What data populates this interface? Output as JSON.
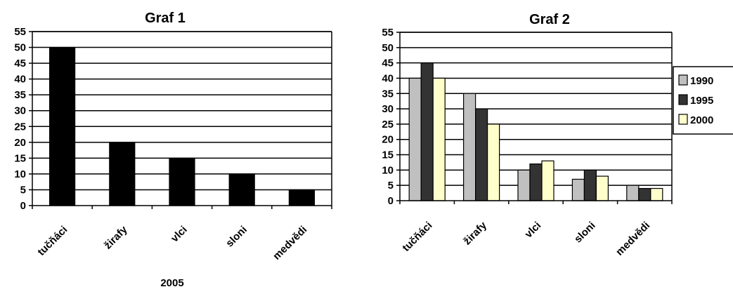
{
  "chart_data": [
    {
      "type": "bar",
      "title": "Graf 1",
      "xlabel": "2005",
      "ylabel": "",
      "ylim": [
        0,
        55
      ],
      "yticks": [
        0,
        5,
        10,
        15,
        20,
        25,
        30,
        35,
        40,
        45,
        50,
        55
      ],
      "grid": true,
      "categories": [
        "tučňáci",
        "žirafy",
        "vlci",
        "sloni",
        "medvědi"
      ],
      "series": [
        {
          "values": [
            50,
            20,
            15,
            10,
            5
          ],
          "color": "#000000"
        }
      ]
    },
    {
      "type": "bar",
      "title": "Graf 2",
      "xlabel": "",
      "ylabel": "",
      "ylim": [
        0,
        55
      ],
      "yticks": [
        0,
        5,
        10,
        15,
        20,
        25,
        30,
        35,
        40,
        45,
        50,
        55
      ],
      "grid": true,
      "legend": "right",
      "categories": [
        "tučňáci",
        "žirafy",
        "vlci",
        "sloni",
        "medvědi"
      ],
      "series": [
        {
          "name": "1990",
          "values": [
            40,
            35,
            10,
            7,
            5
          ],
          "color": "#c0c0c0"
        },
        {
          "name": "1995",
          "values": [
            45,
            30,
            12,
            10,
            4
          ],
          "color": "#333333"
        },
        {
          "name": "2000",
          "values": [
            40,
            25,
            13,
            8,
            4
          ],
          "color": "#ffffcc"
        }
      ]
    }
  ]
}
